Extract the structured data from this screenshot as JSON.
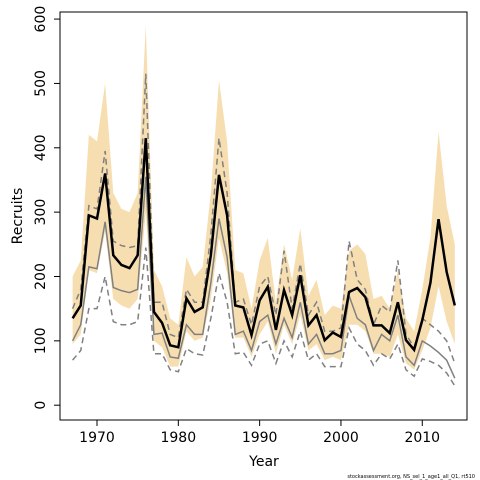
{
  "chart_data": {
    "type": "line",
    "x_label": "Year",
    "y_label": "Recruits",
    "footnote": "stockassessment.org, NS_sel_1_age1_all_Q1, rt510",
    "x": [
      1967,
      1968,
      1969,
      1970,
      1971,
      1972,
      1973,
      1974,
      1975,
      1976,
      1977,
      1978,
      1979,
      1980,
      1981,
      1982,
      1983,
      1984,
      1985,
      1986,
      1987,
      1988,
      1989,
      1990,
      1991,
      1992,
      1993,
      1994,
      1995,
      1996,
      1997,
      1998,
      1999,
      2000,
      2001,
      2002,
      2003,
      2004,
      2005,
      2006,
      2007,
      2008,
      2009,
      2010,
      2011,
      2012,
      2013,
      2014
    ],
    "xlim": [
      1965.45,
      2015.5
    ],
    "xticks": [
      1970,
      1980,
      1990,
      2000,
      2010
    ],
    "ylim": [
      -23,
      611
    ],
    "yticks": [
      0,
      100,
      200,
      300,
      400,
      500,
      600
    ],
    "band": {
      "color": "#f7deb0",
      "upper": [
        200,
        225,
        420,
        410,
        500,
        330,
        305,
        300,
        330,
        590,
        210,
        185,
        135,
        125,
        230,
        200,
        215,
        330,
        505,
        410,
        210,
        205,
        150,
        225,
        260,
        160,
        250,
        195,
        275,
        170,
        195,
        140,
        155,
        150,
        240,
        250,
        235,
        165,
        170,
        150,
        210,
        135,
        115,
        180,
        260,
        425,
        310,
        250
      ],
      "lower": [
        95,
        110,
        210,
        205,
        270,
        165,
        155,
        150,
        165,
        300,
        100,
        90,
        60,
        60,
        115,
        100,
        105,
        165,
        260,
        205,
        105,
        105,
        75,
        110,
        130,
        80,
        125,
        95,
        140,
        85,
        95,
        70,
        75,
        70,
        125,
        125,
        115,
        80,
        80,
        75,
        110,
        65,
        55,
        85,
        120,
        185,
        130,
        95
      ]
    },
    "series": [
      {
        "color": "#808080",
        "style": "dashed",
        "width": 1.5,
        "values": [
          150,
          180,
          310,
          305,
          395,
          255,
          248,
          245,
          248,
          515,
          160,
          160,
          110,
          105,
          180,
          160,
          160,
          265,
          415,
          330,
          160,
          165,
          125,
          185,
          200,
          140,
          240,
          150,
          220,
          140,
          160,
          115,
          115,
          120,
          255,
          195,
          180,
          125,
          155,
          145,
          225,
          110,
          90,
          135,
          125,
          115,
          100,
          65
        ]
      },
      {
        "color": "#808080",
        "style": "dashed",
        "width": 1.5,
        "values": [
          70,
          85,
          150,
          150,
          200,
          130,
          125,
          125,
          130,
          245,
          80,
          80,
          55,
          52,
          88,
          80,
          78,
          135,
          205,
          160,
          80,
          82,
          62,
          95,
          100,
          65,
          100,
          75,
          115,
          70,
          80,
          60,
          60,
          60,
          120,
          95,
          85,
          62,
          80,
          72,
          95,
          55,
          45,
          72,
          68,
          62,
          50,
          30
        ]
      },
      {
        "color": "#808080",
        "style": "solid",
        "width": 1.5,
        "values": [
          100,
          125,
          215,
          212,
          285,
          183,
          178,
          175,
          180,
          355,
          110,
          112,
          75,
          73,
          125,
          110,
          110,
          190,
          290,
          230,
          110,
          115,
          85,
          130,
          140,
          95,
          135,
          105,
          160,
          95,
          110,
          80,
          80,
          85,
          170,
          135,
          125,
          85,
          110,
          100,
          140,
          75,
          62,
          100,
          92,
          82,
          70,
          42
        ]
      },
      {
        "color": "#000000",
        "style": "solid",
        "width": 2.5,
        "values": [
          135,
          155,
          295,
          290,
          360,
          233,
          218,
          213,
          233,
          415,
          145,
          128,
          93,
          90,
          166,
          145,
          152,
          233,
          358,
          295,
          155,
          152,
          109,
          163,
          184,
          117,
          179,
          140,
          202,
          124,
          140,
          101,
          113,
          106,
          176,
          182,
          168,
          124,
          124,
          112,
          160,
          101,
          86,
          132,
          190,
          289,
          207,
          155
        ]
      }
    ]
  }
}
